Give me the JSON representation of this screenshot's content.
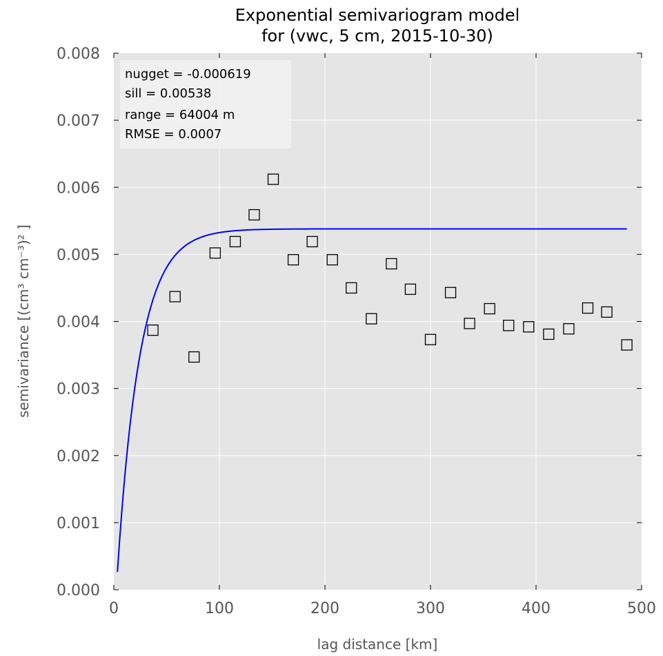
{
  "chart_data": {
    "type": "scatter",
    "title_line1": "Exponential semivariogram model",
    "title_line2": "for (vwc, 5 cm, 2015-10-30)",
    "xlabel": "lag distance [km]",
    "ylabel": "semivariance [(cm³ cm⁻³)² ]",
    "xlim": [
      0,
      500
    ],
    "ylim": [
      0,
      0.008
    ],
    "x_ticks": [
      "0",
      "100",
      "200",
      "300",
      "400",
      "500"
    ],
    "y_ticks": [
      "0.000",
      "0.001",
      "0.002",
      "0.003",
      "0.004",
      "0.005",
      "0.006",
      "0.007",
      "0.008"
    ],
    "grid": true,
    "annotation": {
      "lines": [
        "nugget = -0.000619",
        "sill = 0.00538",
        "range = 64004 m",
        "RMSE = 0.0007"
      ],
      "placement": "top-left"
    },
    "colors": {
      "background": "#e5e5e5",
      "grid": "#ffffff",
      "model_line": "#0000ff",
      "markers": "#000000"
    },
    "series": [
      {
        "type": "scatter",
        "marker": "square-open",
        "x": [
          37,
          58,
          76,
          96,
          115,
          133,
          151,
          170,
          188,
          207,
          225,
          244,
          263,
          281,
          300,
          319,
          337,
          356,
          374,
          393,
          412,
          431,
          449,
          467,
          486
        ],
        "y": [
          0.00387,
          0.00437,
          0.00347,
          0.00502,
          0.00519,
          0.00559,
          0.00612,
          0.00492,
          0.00519,
          0.00492,
          0.0045,
          0.00404,
          0.00486,
          0.00448,
          0.00373,
          0.00443,
          0.00397,
          0.00419,
          0.00394,
          0.00392,
          0.00381,
          0.00389,
          0.0042,
          0.00414,
          0.00365
        ]
      },
      {
        "type": "line",
        "nugget": -0.000619,
        "sill": 0.00538,
        "range_km": 64.004,
        "x_start": 3.4,
        "x_end": 486
      }
    ]
  }
}
